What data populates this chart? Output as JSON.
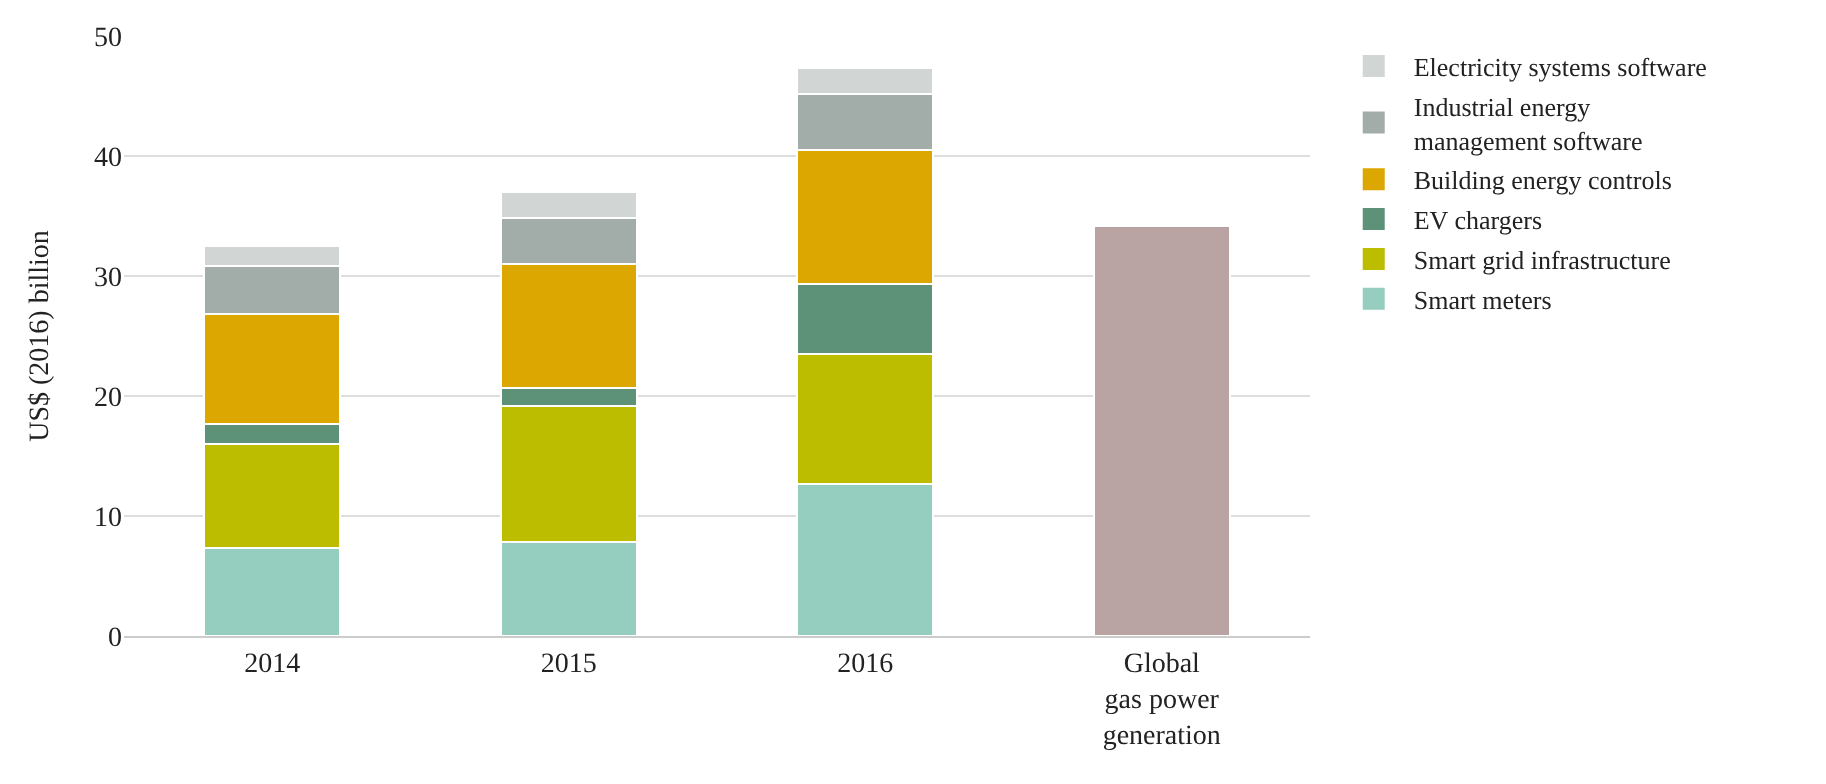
{
  "chart_data": {
    "type": "bar",
    "stacked": true,
    "ylabel": "US$ (2016) billion",
    "categories": [
      "2014",
      "2015",
      "2016",
      "Global\ngas power\ngeneration"
    ],
    "series": [
      {
        "name": "Smart meters",
        "color": "#95cdbf",
        "values": [
          7.3,
          7.8,
          12.7,
          null
        ]
      },
      {
        "name": "Smart grid infrastructure",
        "color": "#bdbd00",
        "values": [
          8.7,
          11.4,
          10.8,
          null
        ]
      },
      {
        "name": "EV chargers",
        "color": "#5d9178",
        "values": [
          1.7,
          1.5,
          5.8,
          null
        ]
      },
      {
        "name": "Building energy controls",
        "color": "#dba700",
        "values": [
          9.1,
          10.3,
          11.2,
          null
        ]
      },
      {
        "name": "Industrial energy\nmanagement software",
        "color": "#a2aca8",
        "values": [
          4.0,
          3.8,
          4.7,
          null
        ]
      },
      {
        "name": "Electricity systems software",
        "color": "#d1d5d3",
        "values": [
          1.7,
          2.2,
          2.1,
          null
        ]
      },
      {
        "color": "#b9a3a3",
        "values": [
          null,
          null,
          null,
          34.2
        ]
      }
    ],
    "ylim": [
      0,
      50
    ],
    "yticks": [
      0,
      10,
      20,
      30,
      40,
      50
    ],
    "grid": "y",
    "legend": "top right"
  }
}
